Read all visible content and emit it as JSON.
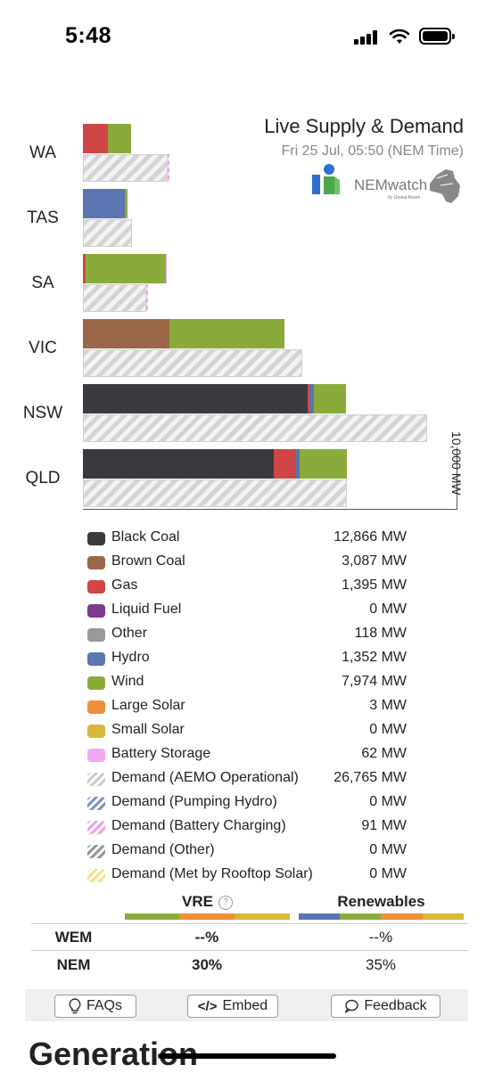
{
  "status_bar": {
    "time": "5:48"
  },
  "header": {
    "title": "Live Supply & Demand",
    "subtitle": "Fri 25 Jul, 05:50 (NEM Time)",
    "logo_text": "NEMwatch",
    "logo_subtext": "by Global-Roam"
  },
  "chart_data": {
    "type": "bar",
    "orientation": "horizontal",
    "categories": [
      "WA",
      "TAS",
      "SA",
      "VIC",
      "NSW",
      "QLD"
    ],
    "scale_label": "10,000 MW",
    "series": [
      {
        "name": "Black Coal",
        "color": "#3b3a3e",
        "values": [
          0,
          0,
          0,
          0,
          8000,
          6800
        ]
      },
      {
        "name": "Brown Coal",
        "color": "#9a6648",
        "values": [
          0,
          0,
          0,
          3087,
          0,
          0
        ]
      },
      {
        "name": "Gas",
        "color": "#d04545",
        "values": [
          900,
          0,
          100,
          0,
          70,
          750
        ]
      },
      {
        "name": "Hydro",
        "color": "#5b75b0",
        "values": [
          0,
          1500,
          0,
          0,
          150,
          150
        ]
      },
      {
        "name": "Wind",
        "color": "#8aab3a",
        "values": [
          800,
          100,
          2850,
          4100,
          1150,
          1700
        ]
      },
      {
        "name": "Battery Storage",
        "color": "#f3a6f0",
        "values": [
          0,
          0,
          50,
          0,
          0,
          0
        ]
      }
    ],
    "demand": {
      "name": "Demand (AEMO Operational)",
      "values": [
        3000,
        1750,
        2250,
        7800,
        12250,
        9400
      ]
    },
    "battery_charging": {
      "name": "Demand (Battery Charging)",
      "values": [
        60,
        0,
        40,
        0,
        0,
        0
      ]
    }
  },
  "legend": [
    {
      "name": "Black Coal",
      "value": "12,866 MW",
      "color": "#3b3a3e",
      "pattern": false
    },
    {
      "name": "Brown Coal",
      "value": "3,087 MW",
      "color": "#9a6648",
      "pattern": false
    },
    {
      "name": "Gas",
      "value": "1,395 MW",
      "color": "#d04545",
      "pattern": false
    },
    {
      "name": "Liquid Fuel",
      "value": "0 MW",
      "color": "#7b3b8e",
      "pattern": false
    },
    {
      "name": "Other",
      "value": "118 MW",
      "color": "#999999",
      "pattern": false
    },
    {
      "name": "Hydro",
      "value": "1,352 MW",
      "color": "#5b75b0",
      "pattern": false
    },
    {
      "name": "Wind",
      "value": "7,974 MW",
      "color": "#8aab3a",
      "pattern": false
    },
    {
      "name": "Large Solar",
      "value": "3 MW",
      "color": "#ef8f3c",
      "pattern": false
    },
    {
      "name": "Small Solar",
      "value": "0 MW",
      "color": "#d8b73a",
      "pattern": false
    },
    {
      "name": "Battery Storage",
      "value": "62 MW",
      "color": "#f3a6f0",
      "pattern": false
    },
    {
      "name": "Demand (AEMO Operational)",
      "value": "26,765 MW",
      "color": "#cccccc",
      "pattern": true
    },
    {
      "name": "Demand (Pumping Hydro)",
      "value": "0 MW",
      "color": "#7f93c0",
      "pattern": true
    },
    {
      "name": "Demand (Battery Charging)",
      "value": "91 MW",
      "color": "#f0a0ec",
      "pattern": true
    },
    {
      "name": "Demand (Other)",
      "value": "0 MW",
      "color": "#999999",
      "pattern": true
    },
    {
      "name": "Demand (Met by Rooftop Solar)",
      "value": "0 MW",
      "color": "#f3e08a",
      "pattern": true
    }
  ],
  "summary": {
    "vre_label": "VRE",
    "renewables_label": "Renewables",
    "rows": [
      {
        "name": "WEM",
        "vre": "--%",
        "renewables": "--%"
      },
      {
        "name": "NEM",
        "vre": "30%",
        "renewables": "35%"
      }
    ]
  },
  "buttons": {
    "faqs": "FAQs",
    "embed": "Embed",
    "feedback": "Feedback"
  },
  "section_title": "Generation"
}
